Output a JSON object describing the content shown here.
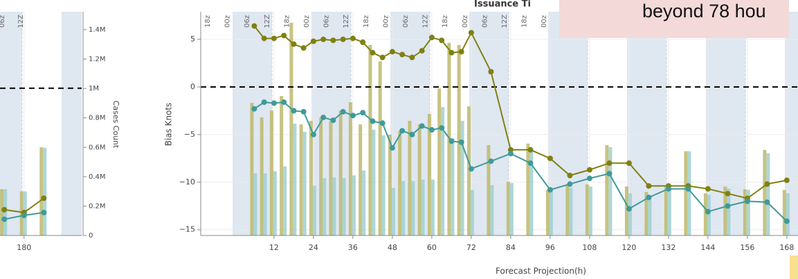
{
  "chart_data": [
    {
      "type": "bar-line",
      "top_labels": [
        "06z",
        "12Z"
      ],
      "x": [
        174,
        180,
        186
      ],
      "xlim": [
        172.7,
        197.5
      ],
      "xticks": [
        180
      ],
      "ylim": [
        -15.4,
        8.0
      ],
      "y2lim": [
        0,
        1522000
      ],
      "y2ticks": [
        0,
        {
          "value": 200000,
          "label": "0.2M"
        },
        {
          "value": 400000,
          "label": "0.4M"
        },
        {
          "value": 600000,
          "label": "0.6M"
        },
        {
          "value": 800000,
          "label": "0.8M"
        },
        {
          "value": 1000000,
          "label": "1M"
        },
        {
          "value": 1200000,
          "label": "1.2M"
        },
        {
          "value": 1400000,
          "label": "1.4M"
        }
      ],
      "y2_label": "Cases Count",
      "grid": true,
      "bars": [
        {
          "color": "#bdb96c",
          "values": [
            315000,
            300000,
            600000
          ]
        },
        {
          "color": "#9fd0cf",
          "values": [
            315000,
            300000,
            596000
          ]
        }
      ],
      "lines": [
        {
          "color": "#808012",
          "values": [
            -12.7,
            -13.0,
            -11.5
          ]
        },
        {
          "color": "#3f9a9a",
          "values": [
            -13.7,
            -13.3,
            -13.0
          ]
        }
      ]
    },
    {
      "type": "bar-line",
      "title": "Issuance Ti",
      "top_labels": [
        "18z",
        "00z",
        "06z",
        "12Z",
        "18z",
        "00z",
        "06z",
        "12Z",
        "18z",
        "00z",
        "06z",
        "12Z",
        "18z",
        "00z",
        "06z",
        "12Z",
        "18z",
        "00z"
      ],
      "x": [
        6,
        9,
        12,
        15,
        18,
        21,
        24,
        27,
        30,
        33,
        36,
        39,
        42,
        45,
        48,
        51,
        54,
        57,
        60,
        63,
        66,
        69,
        72,
        78,
        84,
        90,
        96,
        102,
        108,
        114,
        120,
        126,
        132,
        138,
        144,
        150,
        156,
        162,
        168
      ],
      "xlim": [
        -10.3,
        171.4
      ],
      "xticks": [
        12,
        24,
        36,
        48,
        60,
        72,
        84,
        96,
        108,
        120,
        132,
        144,
        156,
        168
      ],
      "x_label": "Forecast Projection(h)",
      "ylim": [
        -15.6,
        7.9
      ],
      "yticks": [
        {
          "value": -15,
          "label": "−15"
        },
        {
          "value": -10,
          "label": "−10"
        },
        {
          "value": -5,
          "label": "−5"
        },
        0,
        5
      ],
      "y_label": "Bias Knots",
      "y2lim": [
        0,
        1522000
      ],
      "grid": true,
      "bars": [
        {
          "color": "#bdb96c",
          "values": [
            902000,
            803000,
            850000,
            949000,
            1447000,
            756000,
            780000,
            803000,
            780000,
            850000,
            907000,
            756000,
            1296000,
            1184000,
            686000,
            709000,
            780000,
            756000,
            827000,
            1000000,
            1310000,
            1296000,
            878000,
            615000,
            366000,
            625000,
            310000,
            343000,
            348000,
            615000,
            333000,
            296000,
            333000,
            573000,
            287000,
            333000,
            315000,
            582000,
            310000
          ]
        },
        {
          "color": "#9fd0cf",
          "values": [
            423000,
            423000,
            437000,
            470000,
            761000,
            705000,
            338000,
            390000,
            395000,
            390000,
            409000,
            442000,
            719000,
            681000,
            324000,
            371000,
            371000,
            380000,
            380000,
            874000,
            662000,
            780000,
            310000,
            343000,
            357000,
            592000,
            310000,
            324000,
            333000,
            601000,
            287000,
            272000,
            333000,
            573000,
            277000,
            319000,
            310000,
            559000,
            287000
          ]
        }
      ],
      "lines": [
        {
          "color": "#808012",
          "values": [
            6.4,
            5.1,
            5.1,
            5.4,
            4.5,
            4.1,
            4.8,
            5.0,
            4.9,
            5.0,
            5.1,
            4.7,
            3.6,
            3.1,
            3.7,
            3.4,
            3.1,
            3.8,
            5.2,
            4.9,
            3.6,
            3.7,
            5.7,
            1.6,
            -6.6,
            -6.6,
            -7.5,
            -9.3,
            -8.7,
            -8.0,
            -8.0,
            -10.4,
            -10.4,
            -10.4,
            -10.7,
            -11.2,
            -11.7,
            -10.2,
            -9.8
          ]
        },
        {
          "color": "#3f9a9a",
          "values": [
            -2.3,
            -1.6,
            -1.7,
            -1.6,
            -2.5,
            -2.6,
            -5.0,
            -3.2,
            -3.5,
            -2.6,
            -3.0,
            -2.7,
            -3.6,
            -3.8,
            -6.4,
            -4.6,
            -5.0,
            -4.1,
            -4.5,
            -4.3,
            -5.7,
            -5.8,
            -8.6,
            -7.8,
            -7.0,
            -8.0,
            -10.8,
            -10.2,
            -9.6,
            -9.1,
            -12.8,
            -11.6,
            -10.7,
            -10.7,
            -13.1,
            -12.5,
            -12.0,
            -12.1,
            -14.1
          ]
        }
      ]
    }
  ],
  "overlay": {
    "text": "beyond 78 hou"
  }
}
